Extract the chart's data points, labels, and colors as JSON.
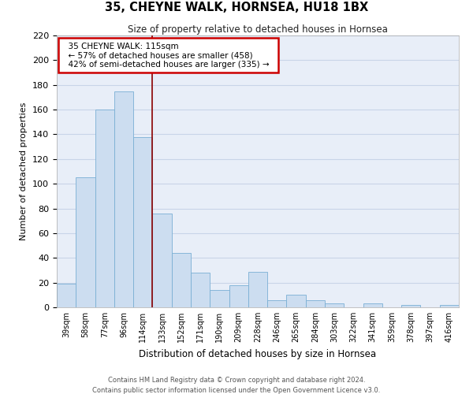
{
  "title": "35, CHEYNE WALK, HORNSEA, HU18 1BX",
  "subtitle": "Size of property relative to detached houses in Hornsea",
  "xlabel": "Distribution of detached houses by size in Hornsea",
  "ylabel": "Number of detached properties",
  "bin_labels": [
    "39sqm",
    "58sqm",
    "77sqm",
    "96sqm",
    "114sqm",
    "133sqm",
    "152sqm",
    "171sqm",
    "190sqm",
    "209sqm",
    "228sqm",
    "246sqm",
    "265sqm",
    "284sqm",
    "303sqm",
    "322sqm",
    "341sqm",
    "359sqm",
    "378sqm",
    "397sqm",
    "416sqm"
  ],
  "bar_values": [
    19,
    105,
    160,
    175,
    138,
    76,
    44,
    28,
    14,
    18,
    29,
    6,
    10,
    6,
    3,
    0,
    3,
    0,
    2,
    0,
    2
  ],
  "bar_color": "#ccddf0",
  "bar_edge_color": "#7aafd4",
  "grid_color": "#c8d4e8",
  "background_color": "#e8eef8",
  "marker_line_color": "#8b0000",
  "annotation_title": "35 CHEYNE WALK: 115sqm",
  "annotation_line1": "← 57% of detached houses are smaller (458)",
  "annotation_line2": "42% of semi-detached houses are larger (335) →",
  "annotation_box_color": "#ffffff",
  "annotation_box_edge_color": "#cc0000",
  "ylim": [
    0,
    220
  ],
  "yticks": [
    0,
    20,
    40,
    60,
    80,
    100,
    120,
    140,
    160,
    180,
    200,
    220
  ],
  "footer_line1": "Contains HM Land Registry data © Crown copyright and database right 2024.",
  "footer_line2": "Contains public sector information licensed under the Open Government Licence v3.0."
}
